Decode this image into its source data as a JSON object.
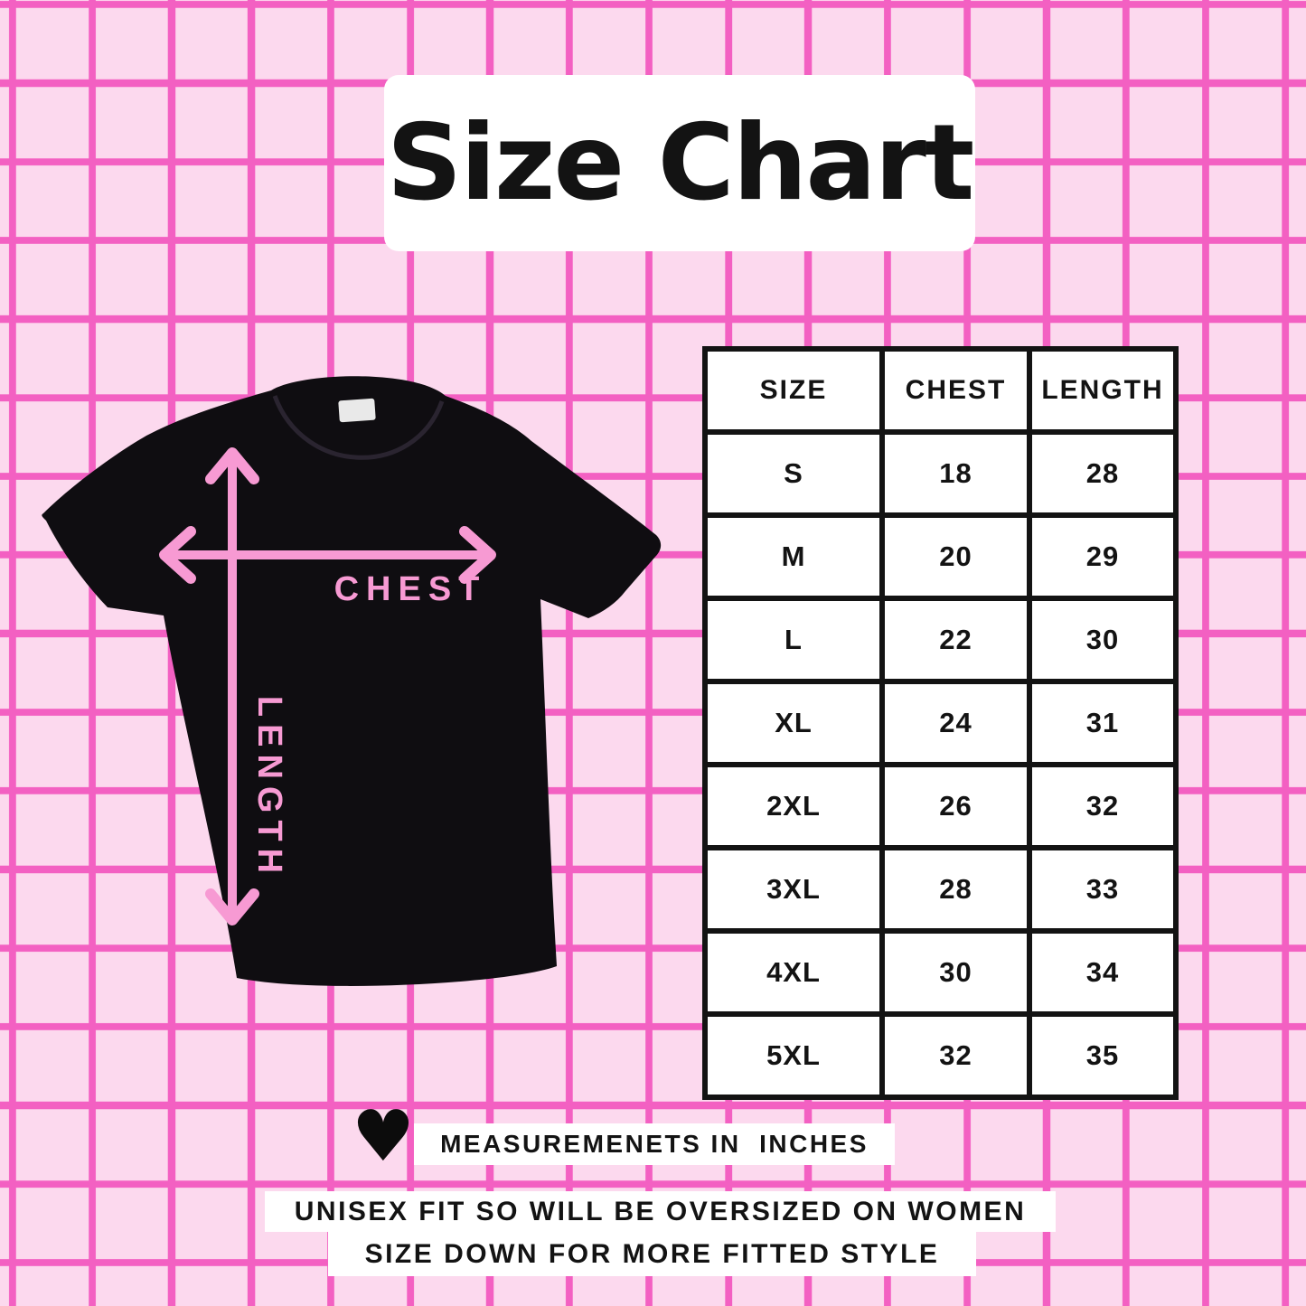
{
  "title": "Size Chart",
  "colors": {
    "background": "#fcd9ee",
    "grid_line": "#f360c2",
    "accent_pink": "#f79ad3",
    "text_black": "#131313",
    "shirt_black": "#0f0d11",
    "white": "#ffffff",
    "tag_gray": "#e9e9e9"
  },
  "shirt_diagram": {
    "chest_label": "CHEST",
    "length_label": "LENGTH"
  },
  "size_table": {
    "headers": [
      "SIZE",
      "CHEST",
      "LENGTH"
    ],
    "rows": [
      {
        "size": "S",
        "chest": "18",
        "length": "28"
      },
      {
        "size": "M",
        "chest": "20",
        "length": "29"
      },
      {
        "size": "L",
        "chest": "22",
        "length": "30"
      },
      {
        "size": "XL",
        "chest": "24",
        "length": "31"
      },
      {
        "size": "2XL",
        "chest": "26",
        "length": "32"
      },
      {
        "size": "3XL",
        "chest": "28",
        "length": "33"
      },
      {
        "size": "4XL",
        "chest": "30",
        "length": "34"
      },
      {
        "size": "5XL",
        "chest": "32",
        "length": "35"
      }
    ]
  },
  "notes": {
    "measurement_note": "MEASUREMENETS IN  INCHES",
    "fit_note_line1": "UNISEX FIT SO WILL BE OVERSIZED ON WOMEN",
    "fit_note_line2": "SIZE DOWN FOR MORE FITTED STYLE"
  },
  "heart_glyph": "♥",
  "chart_data": {
    "type": "table",
    "title": "Size Chart",
    "units": "inches",
    "columns": [
      "SIZE",
      "CHEST",
      "LENGTH"
    ],
    "rows": [
      [
        "S",
        18,
        28
      ],
      [
        "M",
        20,
        29
      ],
      [
        "L",
        22,
        30
      ],
      [
        "XL",
        24,
        31
      ],
      [
        "2XL",
        26,
        32
      ],
      [
        "3XL",
        28,
        33
      ],
      [
        "4XL",
        30,
        34
      ],
      [
        "5XL",
        32,
        35
      ]
    ]
  }
}
